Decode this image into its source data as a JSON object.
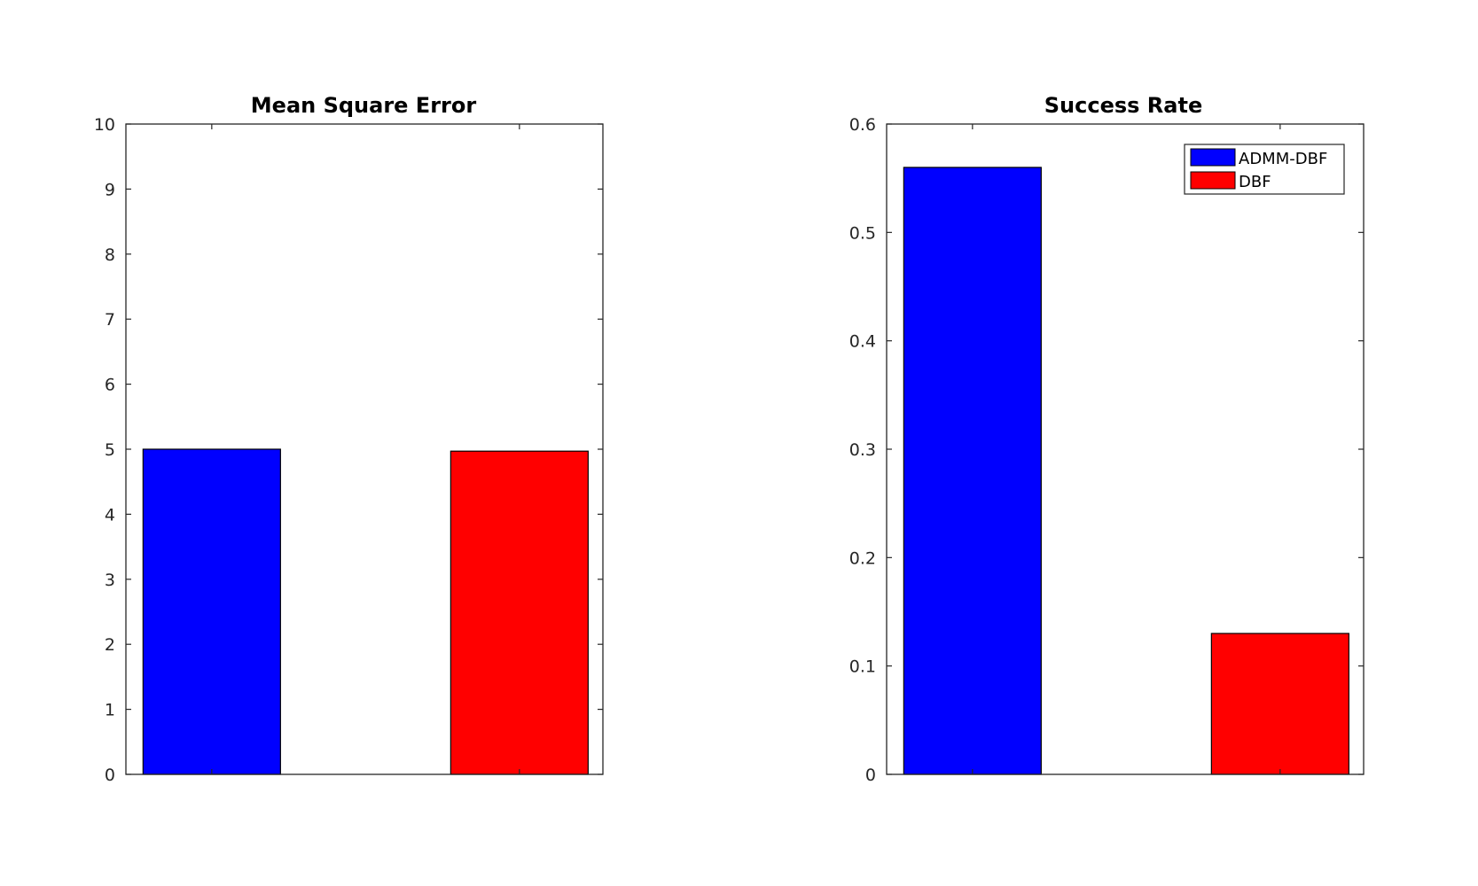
{
  "chart_data": [
    {
      "type": "bar",
      "title": "Mean Square Error",
      "xlabel": "",
      "ylabel": "",
      "ylim": [
        0,
        10
      ],
      "yticks": [
        0,
        1,
        2,
        3,
        4,
        5,
        6,
        7,
        8,
        9,
        10
      ],
      "series": [
        {
          "name": "ADMM-DBF",
          "value": 5.0,
          "color": "#0000ff"
        },
        {
          "name": "DBF",
          "value": 4.97,
          "color": "#ff0000"
        }
      ],
      "legend": false,
      "grid": false
    },
    {
      "type": "bar",
      "title": "Success Rate",
      "xlabel": "",
      "ylabel": "",
      "ylim": [
        0,
        0.6
      ],
      "yticks": [
        0,
        0.1,
        0.2,
        0.3,
        0.4,
        0.5,
        0.6
      ],
      "series": [
        {
          "name": "ADMM-DBF",
          "value": 0.56,
          "color": "#0000ff"
        },
        {
          "name": "DBF",
          "value": 0.13,
          "color": "#ff0000"
        }
      ],
      "legend": true,
      "legend_position": "top-right",
      "grid": false
    }
  ]
}
